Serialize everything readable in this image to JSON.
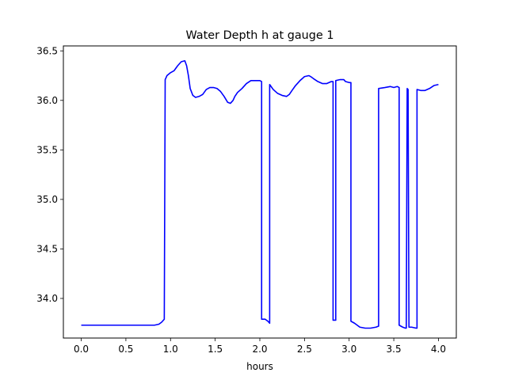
{
  "chart_data": {
    "type": "line",
    "title": "Water Depth h at gauge 1",
    "xlabel": "hours",
    "ylabel": "",
    "xlim": [
      -0.2,
      4.2
    ],
    "ylim": [
      33.6,
      36.55
    ],
    "x_ticks": [
      0.0,
      0.5,
      1.0,
      1.5,
      2.0,
      2.5,
      3.0,
      3.5,
      4.0
    ],
    "x_tick_labels": [
      "0.0",
      "0.5",
      "1.0",
      "1.5",
      "2.0",
      "2.5",
      "3.0",
      "3.5",
      "4.0"
    ],
    "y_ticks": [
      34.0,
      34.5,
      35.0,
      35.5,
      36.0,
      36.5
    ],
    "y_tick_labels": [
      "34.0",
      "34.5",
      "35.0",
      "35.5",
      "36.0",
      "36.5"
    ],
    "grid": false,
    "legend": "none",
    "series": [
      {
        "color": "#0000ff",
        "x": [
          0.0,
          0.2,
          0.5,
          0.7,
          0.82,
          0.87,
          0.9,
          0.93,
          0.94,
          0.96,
          1.0,
          1.04,
          1.08,
          1.12,
          1.16,
          1.18,
          1.2,
          1.22,
          1.25,
          1.28,
          1.32,
          1.36,
          1.4,
          1.44,
          1.48,
          1.52,
          1.56,
          1.6,
          1.64,
          1.67,
          1.7,
          1.72,
          1.75,
          1.8,
          1.85,
          1.9,
          1.95,
          2.0,
          2.02,
          2.02,
          2.06,
          2.09,
          2.11,
          2.11,
          2.15,
          2.2,
          2.25,
          2.3,
          2.33,
          2.36,
          2.4,
          2.45,
          2.5,
          2.55,
          2.57,
          2.6,
          2.65,
          2.7,
          2.75,
          2.8,
          2.82,
          2.82,
          2.85,
          2.85,
          2.9,
          2.94,
          2.96,
          3.0,
          3.02,
          3.02,
          3.06,
          3.12,
          3.18,
          3.24,
          3.3,
          3.33,
          3.33,
          3.4,
          3.46,
          3.5,
          3.54,
          3.56,
          3.56,
          3.6,
          3.63,
          3.64,
          3.65,
          3.66,
          3.67,
          3.7,
          3.75,
          3.76,
          3.76,
          3.8,
          3.85,
          3.9,
          3.95,
          4.0
        ],
        "y": [
          33.73,
          33.73,
          33.73,
          33.73,
          33.73,
          33.74,
          33.76,
          33.79,
          36.21,
          36.25,
          36.28,
          36.3,
          36.35,
          36.39,
          36.4,
          36.35,
          36.25,
          36.12,
          36.05,
          36.03,
          36.04,
          36.06,
          36.11,
          36.13,
          36.13,
          36.12,
          36.09,
          36.04,
          35.98,
          35.97,
          36.0,
          36.04,
          36.08,
          36.12,
          36.17,
          36.2,
          36.2,
          36.2,
          36.19,
          33.79,
          33.79,
          33.77,
          33.75,
          36.16,
          36.11,
          36.07,
          36.05,
          36.04,
          36.06,
          36.1,
          36.15,
          36.2,
          36.24,
          36.25,
          36.24,
          36.22,
          36.19,
          36.17,
          36.17,
          36.19,
          36.19,
          33.78,
          33.78,
          36.2,
          36.21,
          36.21,
          36.19,
          36.18,
          36.18,
          33.77,
          33.75,
          33.71,
          33.7,
          33.7,
          33.71,
          33.72,
          36.12,
          36.13,
          36.14,
          36.13,
          36.14,
          36.13,
          33.73,
          33.71,
          33.7,
          33.7,
          36.12,
          36.11,
          33.71,
          33.71,
          33.7,
          33.7,
          36.11,
          36.1,
          36.1,
          36.12,
          36.15,
          36.16
        ]
      }
    ]
  }
}
